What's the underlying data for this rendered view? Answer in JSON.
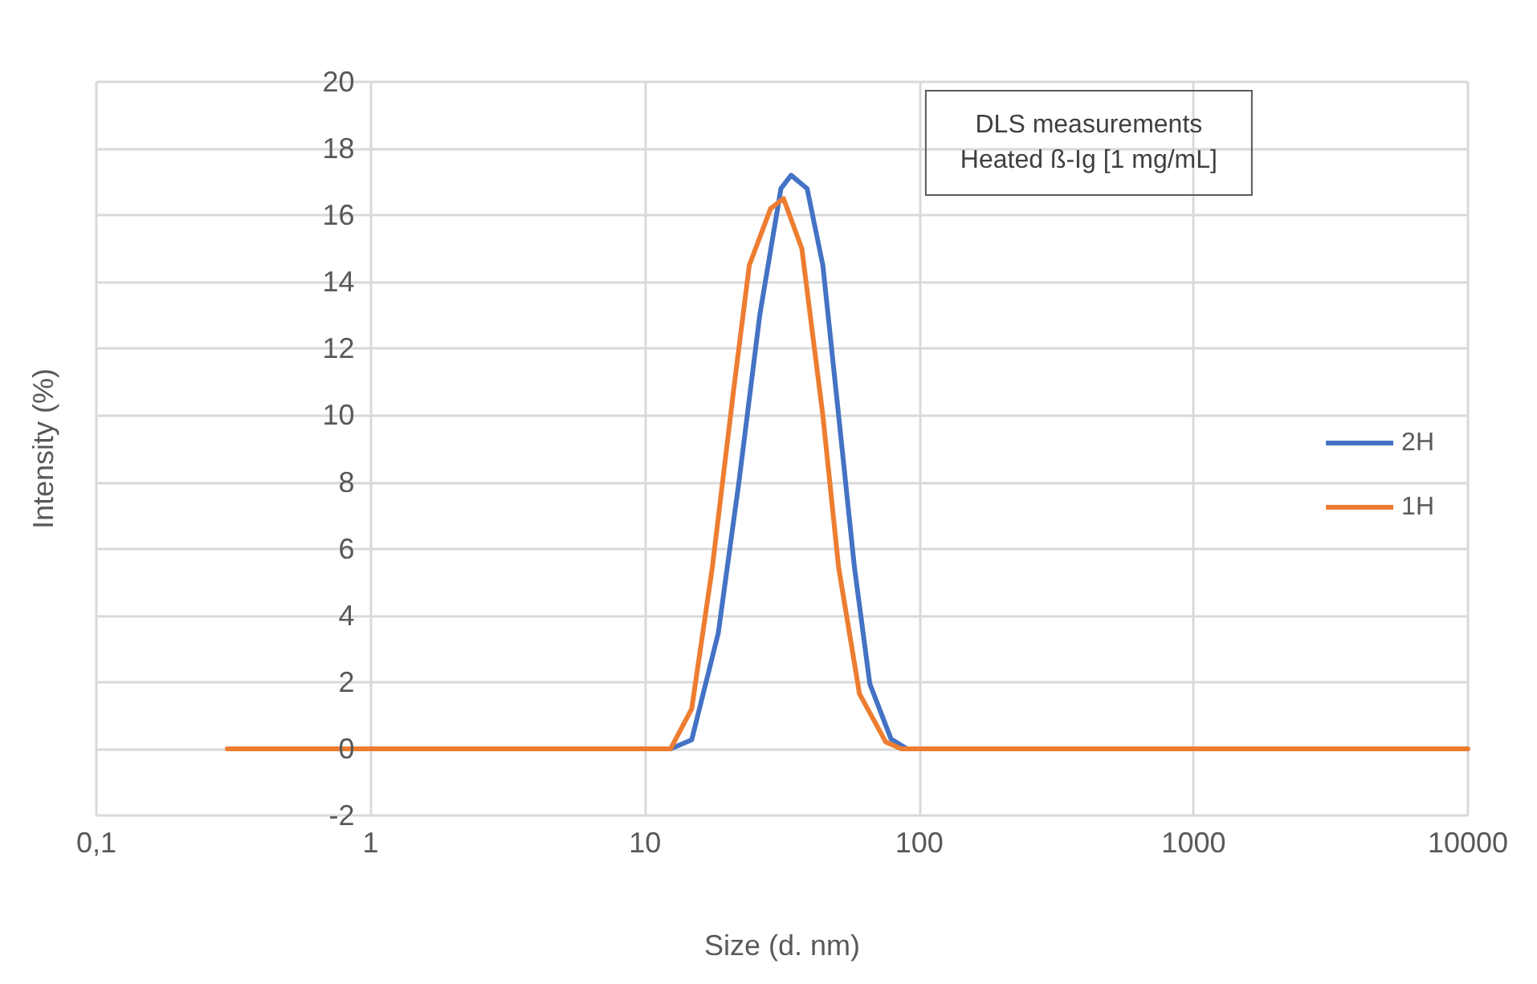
{
  "chart_data": {
    "type": "line",
    "title": "DLS measurements",
    "subtitle": "Heated ß-Ig [1 mg/mL]",
    "xlabel": "Size (d. nm)",
    "ylabel": "Intensity (%)",
    "series": [
      {
        "name": "2H",
        "color": "#4472c4",
        "x": [
          10,
          12.4,
          14.8,
          18.5,
          22,
          26.2,
          31.3,
          34.1,
          39,
          44.5,
          50.8,
          58,
          66,
          78.9,
          90,
          100
        ],
        "values": [
          0,
          0,
          0.27,
          3.47,
          8.0,
          13.0,
          16.8,
          17.2,
          16.8,
          14.5,
          10.0,
          5.45,
          1.95,
          0.29,
          0,
          0
        ]
      },
      {
        "name": "1H",
        "color": "#ed7d31",
        "x": [
          0.3,
          1,
          10,
          12.4,
          14.8,
          17.6,
          21,
          24,
          28.7,
          32,
          37.3,
          44.5,
          50.8,
          60.5,
          75.5,
          86,
          100,
          1000,
          10000
        ],
        "values": [
          0,
          0,
          0,
          0,
          1.2,
          5.44,
          10.7,
          14.5,
          16.2,
          16.5,
          15.0,
          10.0,
          5.44,
          1.65,
          0.2,
          0,
          0,
          0,
          0
        ]
      }
    ],
    "log": "x",
    "xlim": [
      0.1,
      10000
    ],
    "xticks": [
      {
        "value": 0.1,
        "label": "0,1"
      },
      1,
      10,
      100,
      1000,
      10000
    ],
    "ylim": [
      -2,
      20
    ],
    "yticks": [
      -2,
      0,
      2,
      4,
      6,
      8,
      10,
      12,
      14,
      16,
      18,
      20
    ],
    "grid": true,
    "legend": "right",
    "marker": "none",
    "line_style": "solid"
  }
}
